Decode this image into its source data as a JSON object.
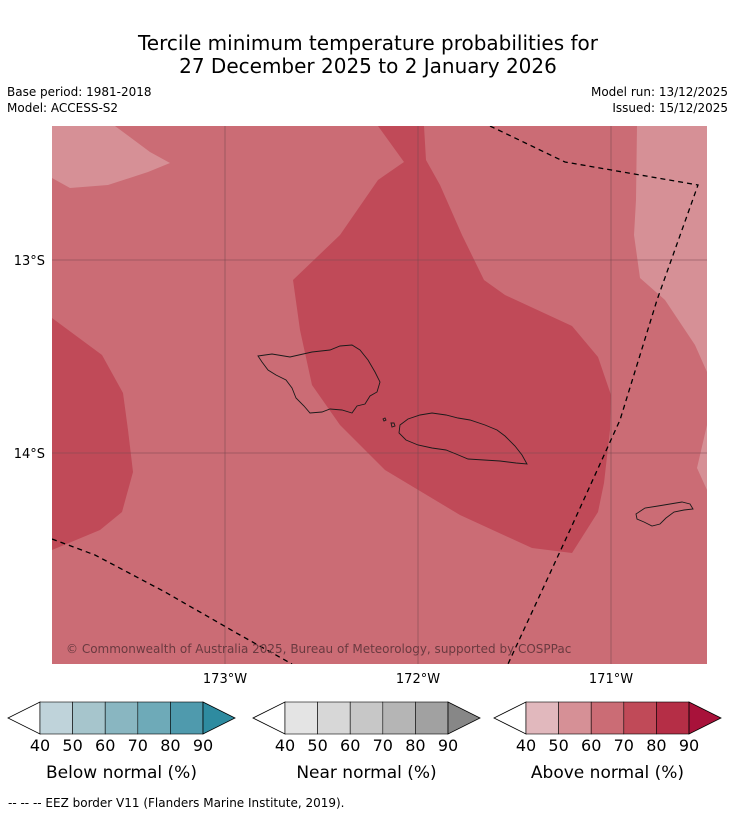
{
  "title": {
    "line1": "Tercile minimum temperature probabilities for",
    "line2": "27 December 2025 to 2 January 2026"
  },
  "meta": {
    "base_period": "Base period: 1981-2018",
    "model": "Model: ACCESS-S2",
    "model_run": "Model run: 13/12/2025",
    "issued": "Issued: 15/12/2025"
  },
  "map": {
    "lon_ticks": [
      "173°W",
      "172°W",
      "171°W"
    ],
    "lat_ticks": [
      "13°S",
      "14°S"
    ],
    "copyright": "© Commonwealth of Australia 2025, Bureau of Meteorology, supported by COSPPac",
    "colors": {
      "above_50": "#d69096",
      "above_60": "#cb6c75",
      "above_70": "#c04a58",
      "grid": "#7a4850",
      "coast": "#1a1a1a",
      "eez": "#000000"
    }
  },
  "colorbars": [
    {
      "name": "below",
      "label": "Below normal (%)",
      "ticks": [
        "40",
        "50",
        "60",
        "70",
        "80",
        "90"
      ],
      "colors": [
        "#bfd3da",
        "#a6c5cc",
        "#89b6c1",
        "#6eaab8",
        "#4f9aad",
        "#2e8ba0"
      ]
    },
    {
      "name": "near",
      "label": "Near normal (%)",
      "ticks": [
        "40",
        "50",
        "60",
        "70",
        "80",
        "90"
      ],
      "colors": [
        "#e4e4e4",
        "#d7d7d7",
        "#c7c7c7",
        "#b5b5b5",
        "#a1a1a1",
        "#878787"
      ]
    },
    {
      "name": "above",
      "label": "Above normal (%)",
      "ticks": [
        "40",
        "50",
        "60",
        "70",
        "80",
        "90"
      ],
      "colors": [
        "#e1b8bd",
        "#d69096",
        "#cb6c75",
        "#c04a58",
        "#b52e46",
        "#a8123a"
      ]
    }
  ],
  "footnote": "--  --  -- EEZ border V11 (Flanders Marine Institute, 2019)."
}
